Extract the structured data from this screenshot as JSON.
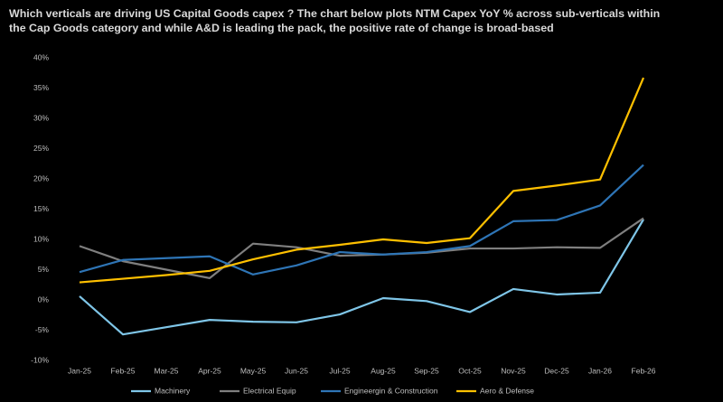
{
  "chart_data": {
    "type": "line",
    "title": "Which verticals are driving US Capital Goods capex ? The chart below plots NTM Capex YoY % across sub-verticals within the Cap Goods category and while A&D is leading the pack, the positive rate of change is broad-based",
    "categories": [
      "Jan-25",
      "Feb-25",
      "Mar-25",
      "Apr-25",
      "May-25",
      "Jun-25",
      "Jul-25",
      "Aug-25",
      "Sep-25",
      "Oct-25",
      "Nov-25",
      "Dec-25",
      "Jan-26",
      "Feb-26"
    ],
    "series": [
      {
        "name": "Machinery",
        "color": "#7fc6e8",
        "values": [
          0.6,
          -5.7,
          -4.5,
          -3.3,
          -3.6,
          -3.7,
          -2.4,
          0.3,
          -0.2,
          -2.0,
          1.8,
          0.9,
          1.2,
          13.3
        ]
      },
      {
        "name": "Electrical Equip",
        "color": "#7f7f7f",
        "values": [
          8.9,
          6.4,
          5.0,
          3.6,
          9.3,
          8.7,
          7.3,
          7.5,
          7.8,
          8.5,
          8.5,
          8.7,
          8.6,
          13.5
        ]
      },
      {
        "name": "Engineergin & Construction",
        "color": "#2e75b6",
        "values": [
          4.6,
          6.6,
          6.9,
          7.2,
          4.2,
          5.7,
          7.9,
          7.5,
          7.9,
          8.9,
          13.0,
          13.2,
          15.6,
          22.3
        ]
      },
      {
        "name": "Aero & Defense",
        "color": "#ffc000",
        "values": [
          2.9,
          3.5,
          4.1,
          4.8,
          6.7,
          8.3,
          9.1,
          10.0,
          9.4,
          10.2,
          18.0,
          18.9,
          19.9,
          36.7
        ]
      }
    ],
    "ylim": [
      -10,
      40
    ],
    "yticks": [
      {
        "value": -10,
        "label": "-10%"
      },
      {
        "value": -5,
        "label": "-5%"
      },
      {
        "value": 0,
        "label": "0%"
      },
      {
        "value": 5,
        "label": "5%"
      },
      {
        "value": 10,
        "label": "10%"
      },
      {
        "value": 15,
        "label": "15%"
      },
      {
        "value": 20,
        "label": "20%"
      },
      {
        "value": 25,
        "label": "25%"
      },
      {
        "value": 30,
        "label": "30%"
      },
      {
        "value": 35,
        "label": "35%"
      },
      {
        "value": 40,
        "label": "40%"
      }
    ],
    "grid": false,
    "legend": "bottom"
  }
}
